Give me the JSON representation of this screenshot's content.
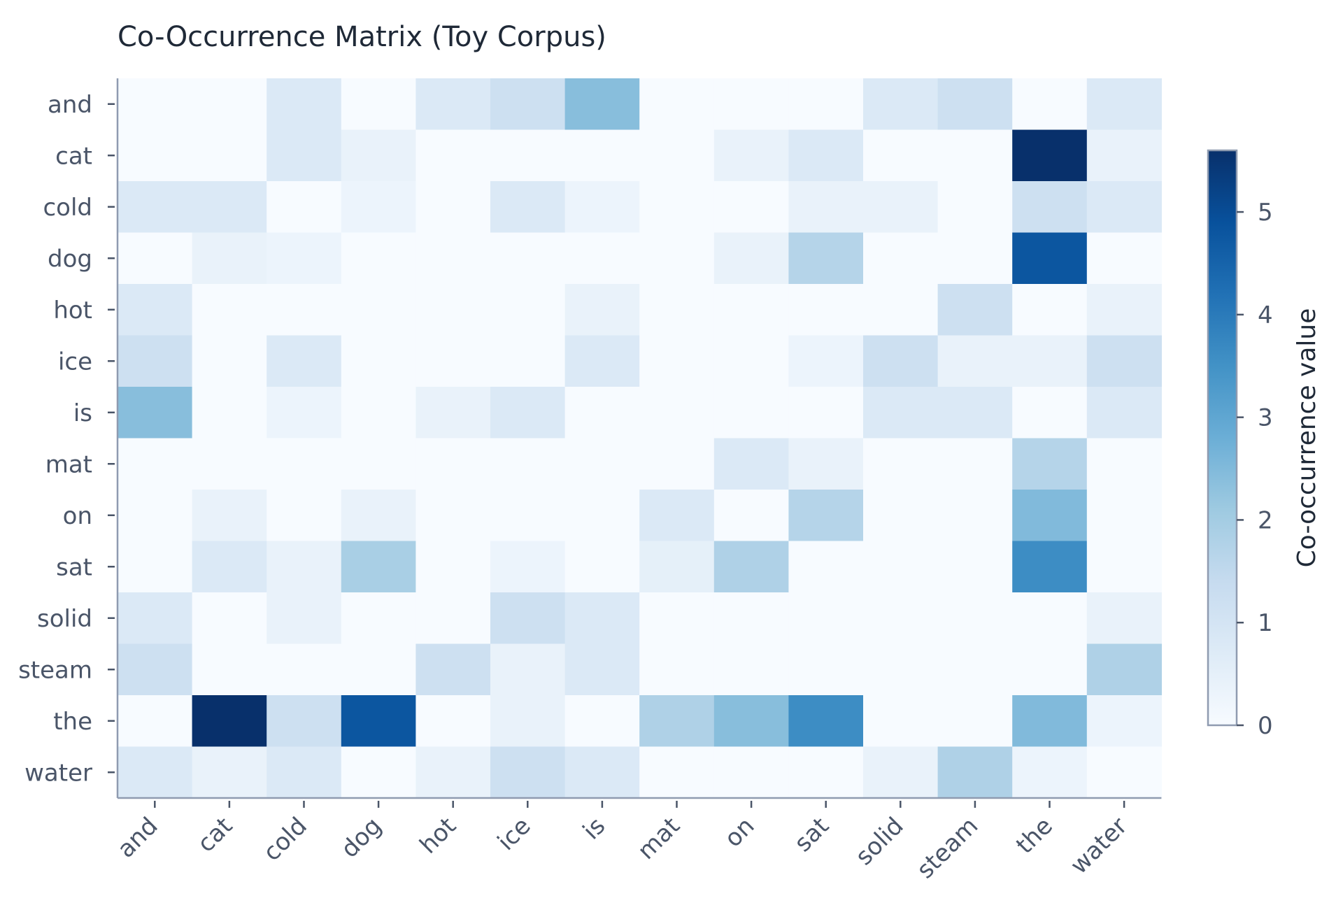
{
  "chart_data": {
    "type": "heatmap",
    "title": "Co-Occurrence Matrix (Toy Corpus)",
    "rows": [
      "and",
      "cat",
      "cold",
      "dog",
      "hot",
      "ice",
      "is",
      "mat",
      "on",
      "sat",
      "solid",
      "steam",
      "the",
      "water"
    ],
    "columns": [
      "and",
      "cat",
      "cold",
      "dog",
      "hot",
      "ice",
      "is",
      "mat",
      "on",
      "sat",
      "solid",
      "steam",
      "the",
      "water"
    ],
    "values": [
      [
        0,
        0,
        0.8,
        0,
        0.8,
        1.2,
        2.4,
        0,
        0,
        0,
        0.8,
        1.2,
        0,
        0.8
      ],
      [
        0,
        0,
        0.8,
        0.4,
        0,
        0,
        0,
        0,
        0.4,
        0.8,
        0,
        0,
        5.6,
        0.4
      ],
      [
        0.8,
        0.8,
        0,
        0.3,
        0,
        0.8,
        0.3,
        0,
        0,
        0.4,
        0.4,
        0,
        1.2,
        0.8
      ],
      [
        0,
        0.4,
        0.3,
        0,
        0,
        0,
        0,
        0,
        0.4,
        1.7,
        0,
        0,
        4.8,
        0
      ],
      [
        0.8,
        0,
        0,
        0,
        0,
        0,
        0.4,
        0,
        0,
        0,
        0,
        1.2,
        0,
        0.4
      ],
      [
        1.2,
        0,
        0.8,
        0,
        0,
        0,
        0.8,
        0,
        0,
        0.3,
        1.2,
        0.4,
        0.4,
        1.2
      ],
      [
        2.4,
        0,
        0.3,
        0,
        0.4,
        0.8,
        0,
        0,
        0,
        0,
        0.8,
        0.8,
        0,
        0.8
      ],
      [
        0,
        0,
        0,
        0,
        0,
        0,
        0,
        0,
        0.8,
        0.4,
        0,
        0,
        1.7,
        0
      ],
      [
        0,
        0.4,
        0,
        0.4,
        0,
        0,
        0,
        0.8,
        0,
        1.7,
        0,
        0,
        2.5,
        0
      ],
      [
        0,
        0.8,
        0.4,
        1.9,
        0,
        0.3,
        0,
        0.5,
        1.8,
        0,
        0,
        0,
        3.6,
        0
      ],
      [
        0.8,
        0,
        0.4,
        0,
        0,
        1.2,
        0.8,
        0,
        0,
        0,
        0,
        0,
        0,
        0.4
      ],
      [
        1.2,
        0,
        0,
        0,
        1.2,
        0.4,
        0.8,
        0,
        0,
        0,
        0,
        0,
        0,
        1.8
      ],
      [
        0,
        5.6,
        1.2,
        4.8,
        0,
        0.4,
        0,
        1.8,
        2.4,
        3.6,
        0,
        0,
        2.5,
        0.3
      ],
      [
        0.8,
        0.4,
        0.8,
        0,
        0.4,
        1.2,
        0.8,
        0,
        0,
        0,
        0.4,
        1.8,
        0.3,
        0
      ]
    ],
    "colorbar": {
      "label": "Co-occurrence value",
      "min": 0,
      "max": 5.6,
      "ticks": [
        0,
        1,
        2,
        3,
        4,
        5
      ],
      "colormap": "Blues"
    },
    "legend_placement": "right",
    "grid": false
  }
}
